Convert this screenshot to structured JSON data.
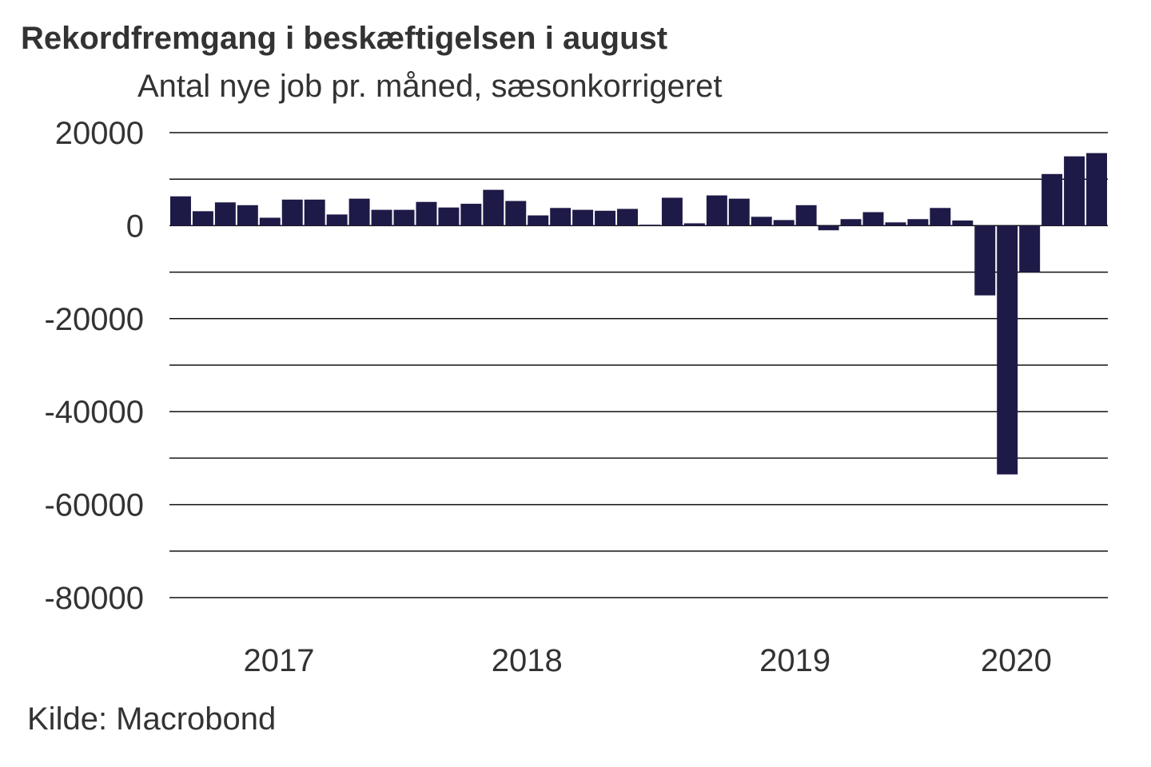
{
  "chart_data": {
    "type": "bar",
    "title": "Rekordfremgang i beskæftigelsen i august",
    "subtitle": "Antal nye job pr. måned, sæsonkorrigeret",
    "source": "Kilde: Macrobond",
    "xlabel": "",
    "ylabel": "",
    "ylim": [
      -80000,
      20000
    ],
    "yticks": [
      20000,
      0,
      -20000,
      -40000,
      -60000,
      -80000
    ],
    "ytick_labels": [
      "20000",
      "0",
      "-20000",
      "-40000",
      "-60000",
      "-80000"
    ],
    "gridlines": [
      20000,
      10000,
      0,
      -10000,
      -20000,
      -30000,
      -40000,
      -50000,
      -60000,
      -70000,
      -80000
    ],
    "xtick_labels": [
      {
        "label": "2017",
        "bar_index": 4.4
      },
      {
        "label": "2018",
        "bar_index": 15.5
      },
      {
        "label": "2019",
        "bar_index": 27.5
      },
      {
        "label": "2020",
        "bar_index": 37.4
      }
    ],
    "values": [
      6300,
      3100,
      5000,
      4400,
      1700,
      5600,
      5600,
      2400,
      5800,
      3400,
      3400,
      5100,
      3900,
      4700,
      7700,
      5300,
      2200,
      3800,
      3400,
      3200,
      3600,
      200,
      6000,
      500,
      6500,
      5800,
      1900,
      1200,
      4400,
      -1000,
      1400,
      2900,
      700,
      1400,
      3800,
      1100,
      -15000,
      -53500,
      -10000,
      11100,
      14900,
      15600
    ],
    "bar_color": "#1e1a47",
    "grid": true
  }
}
